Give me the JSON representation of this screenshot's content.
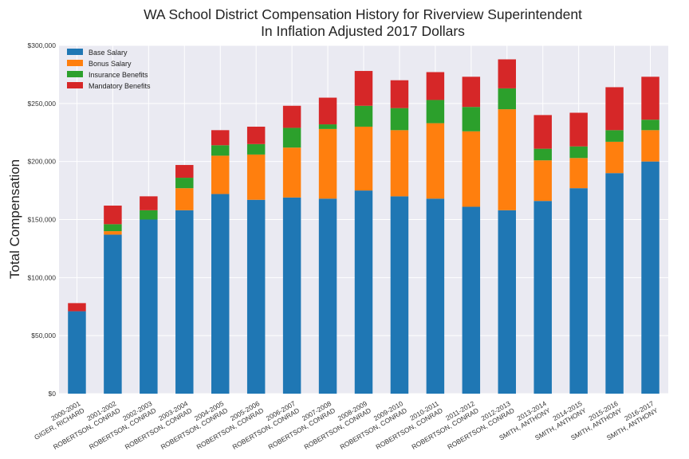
{
  "chart_data": {
    "type": "bar",
    "stacked": true,
    "title": [
      "WA School District Compensation History for Riverview Superintendent",
      "In Inflation Adjusted 2017 Dollars"
    ],
    "xlabel": "",
    "ylabel": "Total Compensation",
    "ylim": [
      0,
      300000
    ],
    "yticks": [
      0,
      50000,
      100000,
      150000,
      200000,
      250000,
      300000
    ],
    "ytick_labels": [
      "$0",
      "$50,000",
      "$100,000",
      "$150,000",
      "$200,000",
      "$250,000",
      "$300,000"
    ],
    "grid": true,
    "legend_placement": "top-left",
    "categories": [
      [
        "2000-2001",
        "GIGER, RICHARD"
      ],
      [
        "2001-2002",
        "ROBERTSON, CONRAD"
      ],
      [
        "2002-2003",
        "ROBERTSON, CONRAD"
      ],
      [
        "2003-2004",
        "ROBERTSON, CONRAD"
      ],
      [
        "2004-2005",
        "ROBERTSON, CONRAD"
      ],
      [
        "2005-2006",
        "ROBERTSON, CONRAD"
      ],
      [
        "2006-2007",
        "ROBERTSON, CONRAD"
      ],
      [
        "2007-2008",
        "ROBERTSON, CONRAD"
      ],
      [
        "2008-2009",
        "ROBERTSON, CONRAD"
      ],
      [
        "2009-2010",
        "ROBERTSON, CONRAD"
      ],
      [
        "2010-2011",
        "ROBERTSON, CONRAD"
      ],
      [
        "2011-2012",
        "ROBERTSON, CONRAD"
      ],
      [
        "2012-2013",
        "ROBERTSON, CONRAD"
      ],
      [
        "2013-2014",
        "SMITH, ANTHONY"
      ],
      [
        "2014-2015",
        "SMITH, ANTHONY"
      ],
      [
        "2015-2016",
        "SMITH, ANTHONY"
      ],
      [
        "2016-2017",
        "SMITH, ANTHONY"
      ]
    ],
    "series": [
      {
        "name": "Base Salary",
        "color": "#1f77b4",
        "values": [
          71000,
          137000,
          150000,
          158000,
          172000,
          167000,
          169000,
          168000,
          175000,
          170000,
          168000,
          161000,
          158000,
          166000,
          177000,
          190000,
          200000
        ]
      },
      {
        "name": "Bonus Salary",
        "color": "#ff7f0e",
        "values": [
          0,
          3000,
          0,
          19000,
          33000,
          39000,
          43000,
          60000,
          55000,
          57000,
          65000,
          65000,
          87000,
          35000,
          26000,
          27000,
          27000
        ]
      },
      {
        "name": "Insurance Benefits",
        "color": "#2ca02c",
        "values": [
          0,
          6000,
          8000,
          9000,
          9000,
          9000,
          17000,
          4000,
          18000,
          19000,
          20000,
          21000,
          18000,
          10000,
          10000,
          10000,
          9000
        ]
      },
      {
        "name": "Mandatory Benefits",
        "color": "#d62728",
        "values": [
          7000,
          16000,
          12000,
          11000,
          13000,
          15000,
          19000,
          23000,
          30000,
          24000,
          24000,
          26000,
          25000,
          29000,
          29000,
          37000,
          37000
        ]
      }
    ]
  }
}
